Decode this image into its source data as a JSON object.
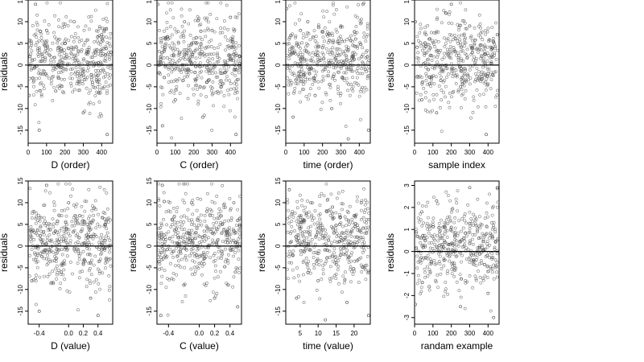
{
  "chart_data": [
    {
      "type": "scatter",
      "xlabel": "D (order)",
      "ylabel": "residuals",
      "xlim": [
        0,
        460
      ],
      "ylim": [
        -18,
        15
      ],
      "xticks": [
        0,
        100,
        200,
        300,
        400
      ],
      "xtick_labels": [
        "0",
        "100",
        "200",
        "300",
        "400"
      ],
      "yticks": [
        -15,
        -10,
        -5,
        0,
        5,
        10,
        15
      ],
      "ytick_labels": [
        "-15",
        "-10",
        "-5",
        "0",
        "5",
        "10",
        "15"
      ],
      "hline": 0,
      "sample": {
        "x": [
          5,
          40,
          60,
          100,
          150,
          200,
          250,
          300,
          350,
          400,
          430,
          450
        ],
        "y": [
          -7,
          14,
          -15,
          8,
          -6,
          5,
          10,
          -11,
          -4,
          7,
          -16,
          3
        ]
      }
    },
    {
      "type": "scatter",
      "xlabel": "C (order)",
      "ylabel": "residuals",
      "xlim": [
        0,
        460
      ],
      "ylim": [
        -18,
        15
      ],
      "xticks": [
        0,
        100,
        200,
        300,
        400
      ],
      "xtick_labels": [
        "0",
        "100",
        "200",
        "300",
        "400"
      ],
      "yticks": [
        -15,
        -10,
        -5,
        0,
        5,
        10,
        15
      ],
      "ytick_labels": [
        "-15",
        "-10",
        "-5",
        "0",
        "5",
        "10",
        "15"
      ],
      "hline": 0,
      "sample": {
        "x": [
          5,
          30,
          60,
          100,
          150,
          200,
          250,
          300,
          350,
          400,
          430,
          450
        ],
        "y": [
          14,
          -14,
          6,
          -8,
          10,
          3,
          -12,
          8,
          -5,
          11,
          -16,
          2
        ]
      }
    },
    {
      "type": "scatter",
      "xlabel": "time (order)",
      "ylabel": "residuals",
      "xlim": [
        0,
        460
      ],
      "ylim": [
        -18,
        15
      ],
      "xticks": [
        0,
        100,
        200,
        300,
        400
      ],
      "xtick_labels": [
        "0",
        "100",
        "200",
        "300",
        "400"
      ],
      "yticks": [
        -15,
        -10,
        -5,
        0,
        5,
        10,
        15
      ],
      "ytick_labels": [
        "-15",
        "-10",
        "-5",
        "0",
        "5",
        "10",
        "15"
      ],
      "hline": 0,
      "sample": {
        "x": [
          5,
          40,
          80,
          120,
          160,
          200,
          250,
          300,
          340,
          380,
          420,
          450
        ],
        "y": [
          13,
          -12,
          8,
          10,
          -7,
          4,
          -10,
          9,
          -17,
          6,
          14,
          -15
        ]
      }
    },
    {
      "type": "scatter",
      "xlabel": "sample index",
      "ylabel": "residuals",
      "xlim": [
        0,
        460
      ],
      "ylim": [
        -18,
        15
      ],
      "xticks": [
        0,
        100,
        200,
        300,
        400
      ],
      "xtick_labels": [
        "0",
        "100",
        "200",
        "300",
        "400"
      ],
      "yticks": [
        -15,
        -10,
        -5,
        0,
        5,
        10,
        15
      ],
      "ytick_labels": [
        "-15",
        "-10",
        "-5",
        "0",
        "5",
        "10",
        "15"
      ],
      "hline": 0,
      "sample": {
        "x": [
          5,
          40,
          80,
          120,
          170,
          200,
          250,
          300,
          350,
          390,
          420,
          450
        ],
        "y": [
          10,
          -8,
          6,
          -11,
          12,
          14,
          -5,
          9,
          -3,
          -16,
          4,
          7
        ]
      }
    },
    {
      "type": "scatter",
      "xlabel": "D (value)",
      "ylabel": "residuals",
      "xlim": [
        -0.55,
        0.6
      ],
      "ylim": [
        -18,
        15
      ],
      "xticks": [
        -0.4,
        0.0,
        0.2,
        0.4
      ],
      "xtick_labels": [
        "-0.4",
        "0.0",
        "0.2",
        "0.4"
      ],
      "yticks": [
        -15,
        -10,
        -5,
        0,
        5,
        10,
        15
      ],
      "ytick_labels": [
        "-15",
        "-10",
        "-5",
        "0",
        "5",
        "10",
        "15"
      ],
      "hline": 0,
      "sample": {
        "x": [
          -0.5,
          -0.4,
          -0.3,
          -0.2,
          -0.1,
          0.0,
          0.1,
          0.15,
          0.2,
          0.3,
          0.4,
          0.5
        ],
        "y": [
          -8,
          -15,
          14,
          3,
          -6,
          10,
          6,
          7,
          -4,
          -12,
          -16,
          5
        ]
      }
    },
    {
      "type": "scatter",
      "xlabel": "C (value)",
      "ylabel": "residuals",
      "xlim": [
        -0.55,
        0.55
      ],
      "ylim": [
        -18,
        15
      ],
      "xticks": [
        -0.4,
        0.0,
        0.2,
        0.4
      ],
      "xtick_labels": [
        "-0.4",
        "0.0",
        "0.2",
        "0.4"
      ],
      "yticks": [
        -15,
        -10,
        -5,
        0,
        5,
        10,
        15
      ],
      "ytick_labels": [
        "-15",
        "-10",
        "-5",
        "0",
        "5",
        "10",
        "15"
      ],
      "hline": 0,
      "sample": {
        "x": [
          -0.5,
          -0.48,
          -0.35,
          -0.2,
          -0.1,
          0.0,
          0.1,
          0.2,
          0.3,
          0.45,
          0.47,
          0.5
        ],
        "y": [
          -16,
          14,
          6,
          -9,
          10,
          -4,
          8,
          -12,
          5,
          10,
          -6,
          -14
        ]
      }
    },
    {
      "type": "scatter",
      "xlabel": "time (value)",
      "ylabel": "residuals",
      "xlim": [
        1,
        24.5
      ],
      "ylim": [
        -18,
        15
      ],
      "xticks": [
        5,
        10,
        15,
        20
      ],
      "xtick_labels": [
        "5",
        "10",
        "15",
        "20"
      ],
      "yticks": [
        -15,
        -10,
        -5,
        0,
        5,
        10,
        15
      ],
      "ytick_labels": [
        "-15",
        "-10",
        "-5",
        "0",
        "5",
        "10",
        "15"
      ],
      "hline": 0,
      "sample": {
        "x": [
          2,
          4,
          6,
          8,
          10,
          12,
          14,
          16,
          18,
          20,
          22,
          24
        ],
        "y": [
          13,
          -12,
          6,
          10,
          -8,
          -17,
          9,
          5,
          -13,
          7,
          10,
          -16
        ]
      }
    },
    {
      "type": "scatter",
      "xlabel": "randam example",
      "ylabel": "residuals",
      "xlim": [
        0,
        460
      ],
      "ylim": [
        -3.3,
        3.2
      ],
      "xticks": [
        0,
        100,
        200,
        300,
        400
      ],
      "xtick_labels": [
        "0",
        "100",
        "200",
        "300",
        "400"
      ],
      "yticks": [
        -3,
        -2,
        -1,
        0,
        1,
        2,
        3
      ],
      "ytick_labels": [
        "-3",
        "-2",
        "-1",
        "0",
        "1",
        "2",
        "3"
      ],
      "hline": 0,
      "sample": {
        "x": [
          5,
          40,
          80,
          120,
          160,
          200,
          250,
          300,
          350,
          400,
          430,
          450
        ],
        "y": [
          -2.4,
          1.8,
          -1.6,
          2.3,
          -0.4,
          1.1,
          -2.5,
          2.9,
          0.6,
          -1.9,
          -3.0,
          2.9
        ]
      }
    }
  ]
}
